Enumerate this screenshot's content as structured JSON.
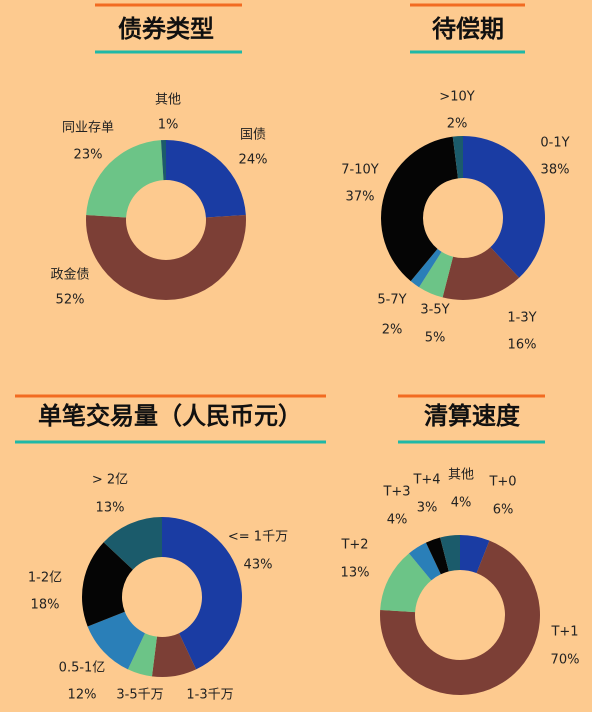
{
  "chart_data": [
    {
      "type": "pie",
      "title": "债券类型",
      "categories": [
        "国债",
        "政金债",
        "同业存单",
        "其他"
      ],
      "values": [
        24,
        52,
        23,
        1
      ],
      "value_labels": [
        "24%",
        "52%",
        "23%",
        "1%"
      ],
      "colors": [
        "#1a3ca3",
        "#7c3f36",
        "#6cc487",
        "#1b5b6b"
      ]
    },
    {
      "type": "pie",
      "title": "待偿期",
      "categories": [
        "0-1Y",
        "1-3Y",
        "3-5Y",
        "5-7Y",
        "7-10Y",
        ">10Y"
      ],
      "values": [
        38,
        16,
        5,
        2,
        37,
        2
      ],
      "value_labels": [
        "38%",
        "16%",
        "5%",
        "2%",
        "37%",
        "2%"
      ],
      "colors": [
        "#1a3ca3",
        "#7c3f36",
        "#6cc487",
        "#2a7fb8",
        "#050505",
        "#1b5b6b"
      ]
    },
    {
      "type": "pie",
      "title": "单笔交易量（人民币元）",
      "categories": [
        "<= 1千万",
        "1-3千万",
        "3-5千万",
        "0.5-1亿",
        "1-2亿",
        "> 2亿"
      ],
      "values": [
        43,
        9,
        5,
        12,
        18,
        13
      ],
      "value_labels": [
        "43%",
        null,
        null,
        "12%",
        "18%",
        "13%"
      ],
      "colors": [
        "#1a3ca3",
        "#7c3f36",
        "#6cc487",
        "#2a7fb8",
        "#050505",
        "#1b5b6b"
      ]
    },
    {
      "type": "pie",
      "title": "清算速度",
      "categories": [
        "T+0",
        "T+1",
        "T+2",
        "T+3",
        "T+4",
        "其他"
      ],
      "values": [
        6,
        70,
        13,
        4,
        3,
        4
      ],
      "value_labels": [
        "6%",
        "70%",
        "13%",
        "4%",
        "3%",
        "4%"
      ],
      "colors": [
        "#1a3ca3",
        "#7c3f36",
        "#6cc487",
        "#2a7fb8",
        "#050505",
        "#1b5b6b"
      ]
    }
  ]
}
